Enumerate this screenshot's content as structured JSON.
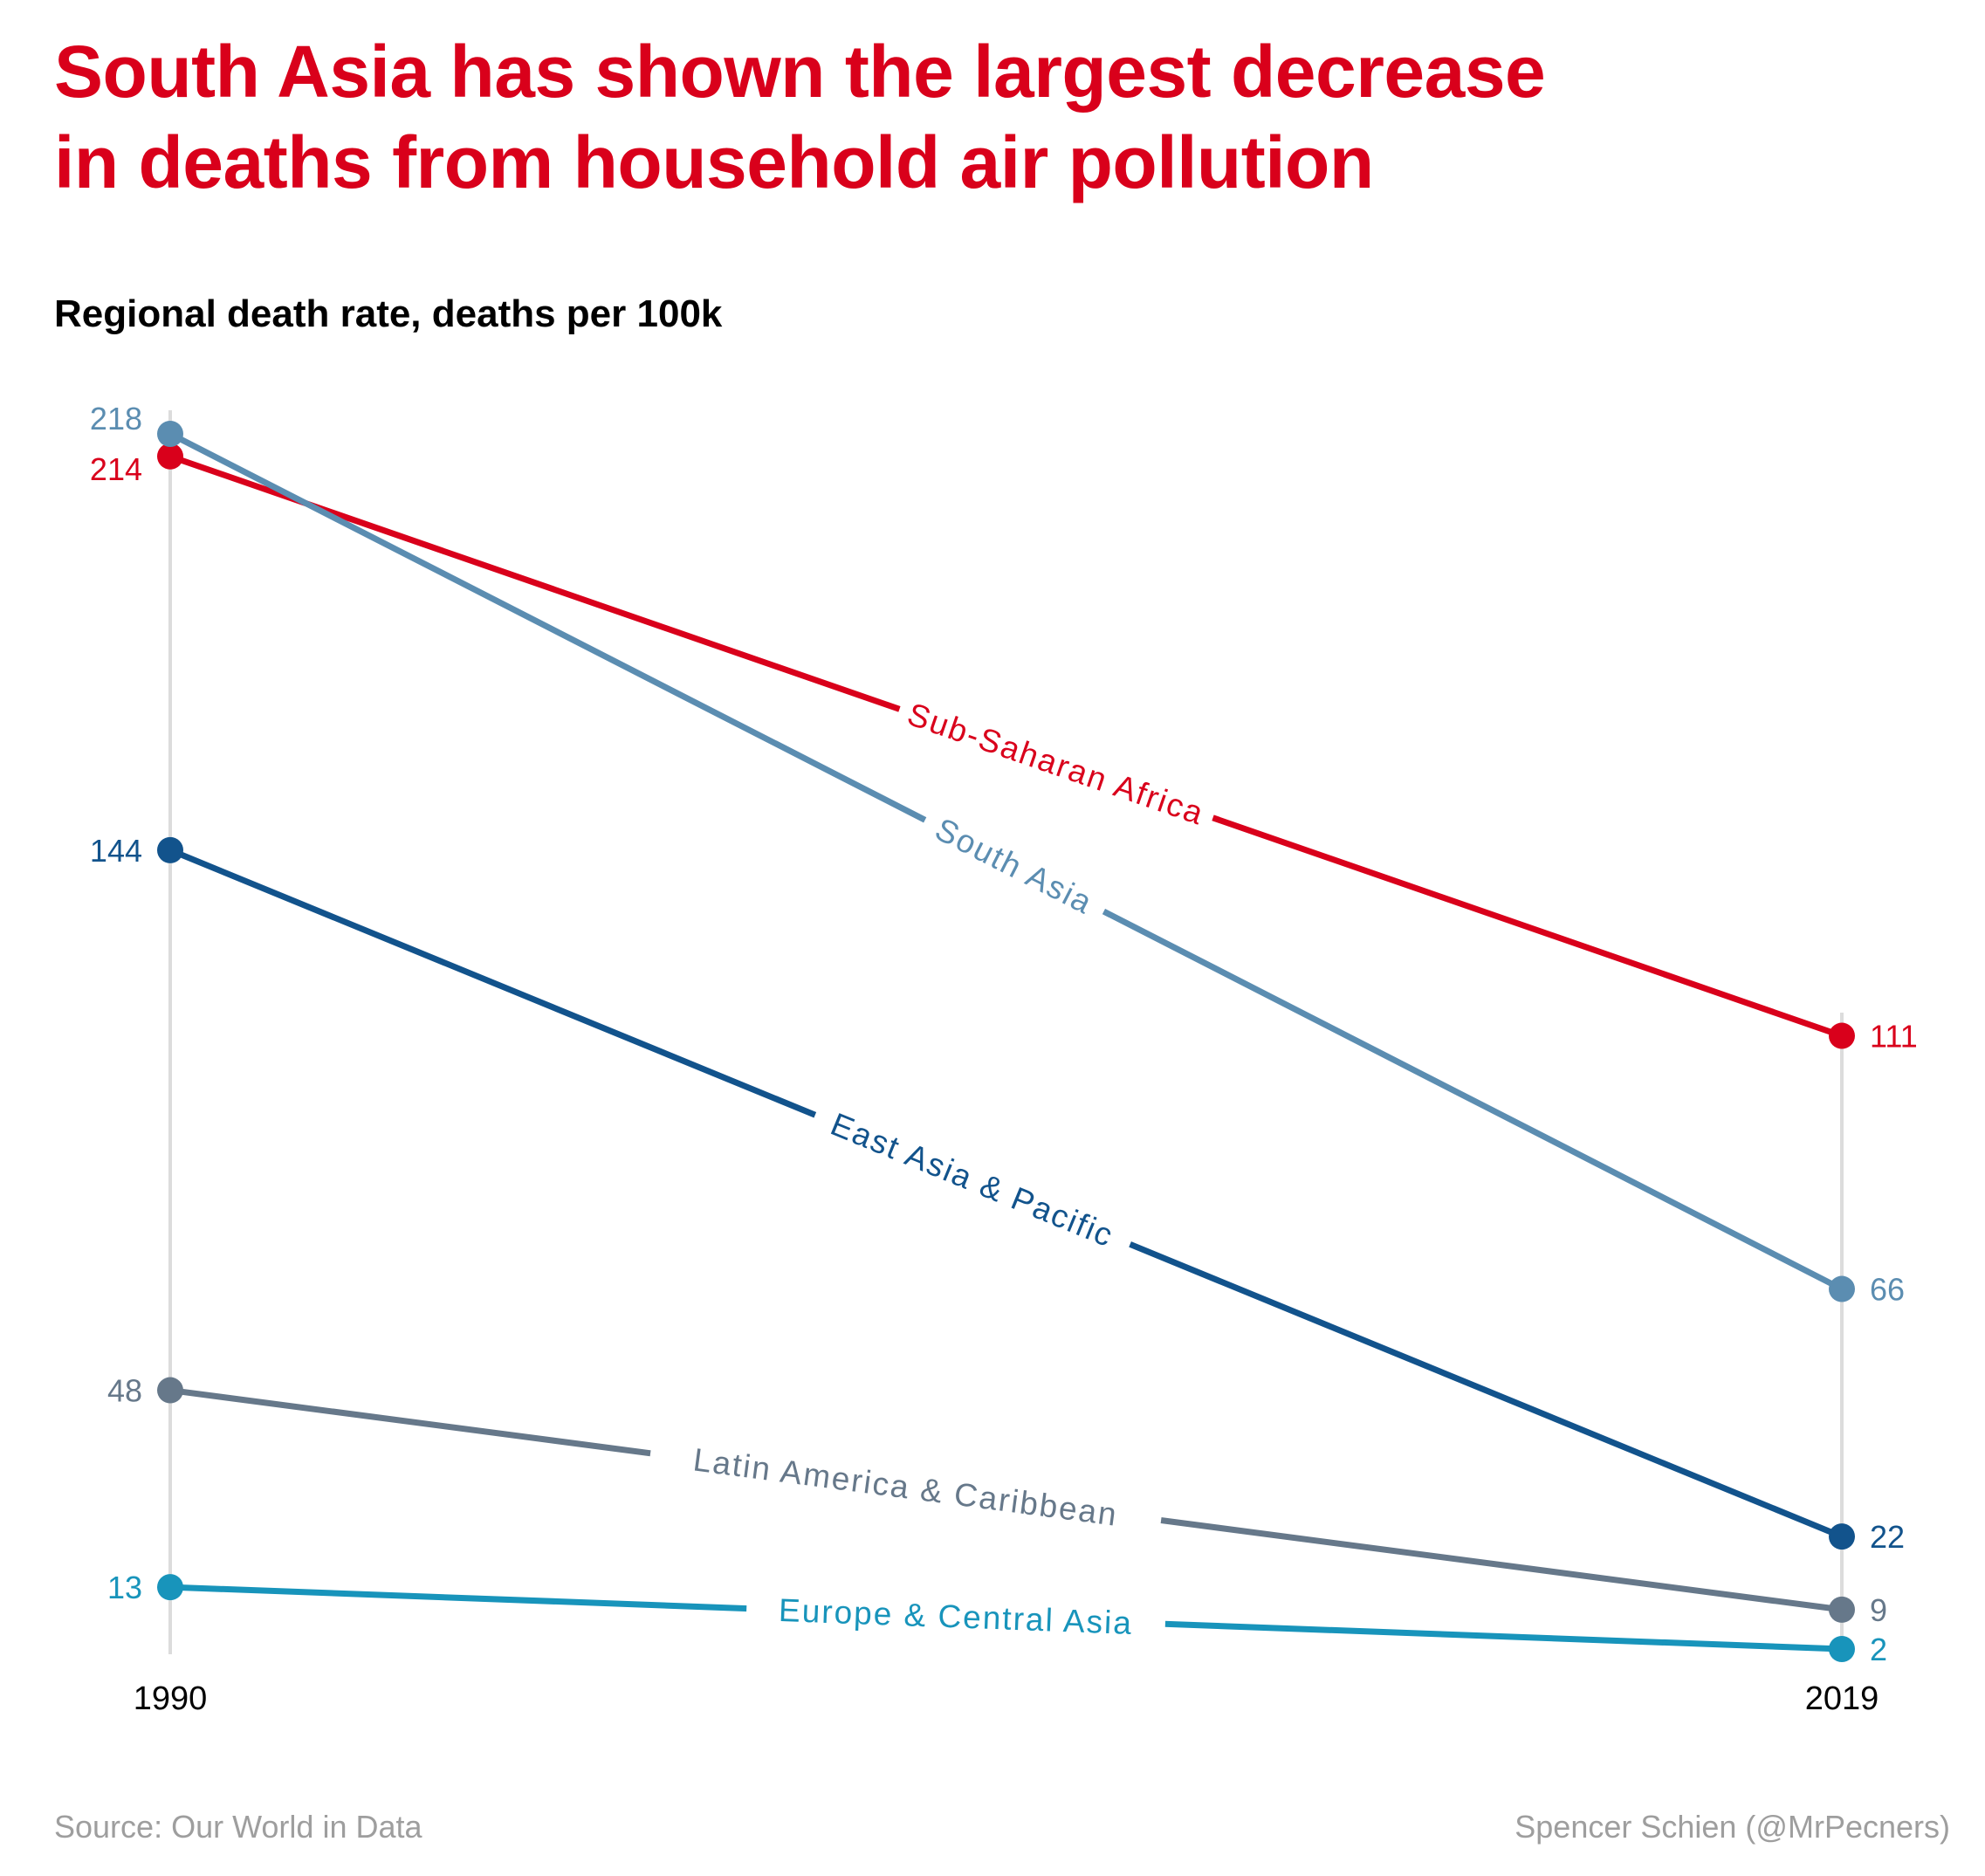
{
  "title_lines": [
    "South Asia has shown the largest decrease",
    "in deaths from household air pollution"
  ],
  "subtitle": "Regional death rate, deaths per 100k",
  "source": "Source: Our World in Data",
  "credit": "Spencer Schien (@MrPecners)",
  "chart_data": {
    "type": "line",
    "x": [
      "1990",
      "2019"
    ],
    "y_unit": "deaths per 100k",
    "ylim": [
      2,
      218
    ],
    "grid": false,
    "series": [
      {
        "name": "Sub-Saharan Africa",
        "values": [
          214,
          111
        ],
        "color": "#d9001b"
      },
      {
        "name": "South Asia",
        "values": [
          218,
          66
        ],
        "color": "#5b8db1"
      },
      {
        "name": "East Asia & Pacific",
        "values": [
          144,
          22
        ],
        "color": "#12538c"
      },
      {
        "name": "Latin America & Caribbean",
        "values": [
          48,
          9
        ],
        "color": "#66788a"
      },
      {
        "name": "Europe & Central Asia",
        "values": [
          13,
          2
        ],
        "color": "#1894bb"
      }
    ]
  }
}
